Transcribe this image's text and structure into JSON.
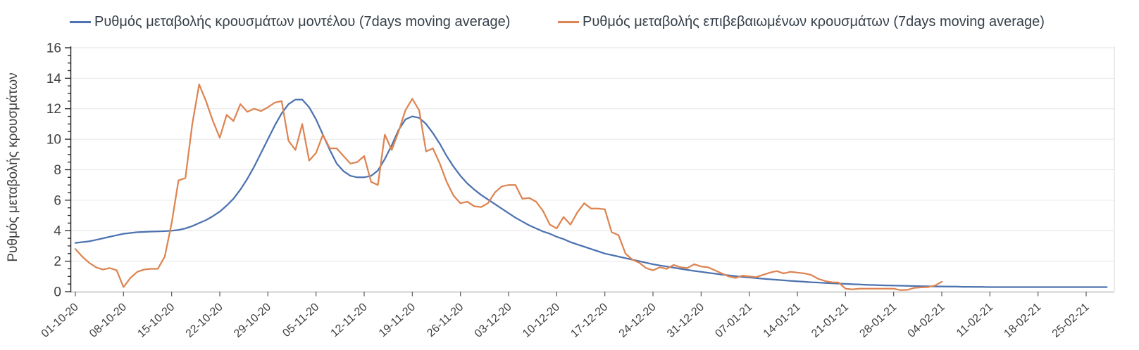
{
  "chart_data": {
    "type": "line",
    "title": "",
    "ylabel": "Ρυθμός μεταβολής κρουσμάτων",
    "xlabel": "",
    "ylim": [
      0,
      16
    ],
    "y_tick_step": 2,
    "y_minor_tick_step": 0.5,
    "grid": true,
    "legend_position": "top",
    "x_tick_interval_days": 7,
    "x_tick_labels": [
      "01-10-20",
      "08-10-20",
      "15-10-20",
      "22-10-20",
      "29-10-20",
      "05-11-20",
      "12-11-20",
      "19-11-20",
      "26-11-20",
      "03-12-20",
      "10-12-20",
      "17-12-20",
      "24-12-20",
      "31-12-20",
      "07-01-21",
      "14-01-21",
      "21-01-21",
      "28-01-21",
      "04-02-21",
      "11-02-21",
      "18-02-21",
      "25-02-21"
    ],
    "series": [
      {
        "name": "Ρυθμός μεταβολής κρουσμάτων μοντέλου (7days moving average)",
        "color": "#4C72B0",
        "start_day": 0,
        "values": [
          3.2,
          3.25,
          3.3,
          3.4,
          3.5,
          3.6,
          3.7,
          3.8,
          3.85,
          3.9,
          3.92,
          3.94,
          3.95,
          3.97,
          4.0,
          4.05,
          4.15,
          4.3,
          4.5,
          4.7,
          4.95,
          5.25,
          5.65,
          6.1,
          6.7,
          7.4,
          8.2,
          9.1,
          10.0,
          10.9,
          11.7,
          12.3,
          12.6,
          12.6,
          12.1,
          11.3,
          10.3,
          9.3,
          8.4,
          7.9,
          7.6,
          7.5,
          7.5,
          7.6,
          7.95,
          8.7,
          9.6,
          10.6,
          11.3,
          11.5,
          11.4,
          11.0,
          10.4,
          9.7,
          8.9,
          8.2,
          7.6,
          7.1,
          6.7,
          6.35,
          6.05,
          5.75,
          5.45,
          5.15,
          4.85,
          4.6,
          4.35,
          4.15,
          3.95,
          3.8,
          3.6,
          3.45,
          3.25,
          3.1,
          2.95,
          2.8,
          2.65,
          2.5,
          2.4,
          2.3,
          2.2,
          2.1,
          2.0,
          1.9,
          1.8,
          1.72,
          1.65,
          1.57,
          1.5,
          1.43,
          1.36,
          1.3,
          1.24,
          1.18,
          1.12,
          1.07,
          1.02,
          0.97,
          0.93,
          0.89,
          0.85,
          0.81,
          0.78,
          0.74,
          0.71,
          0.68,
          0.65,
          0.62,
          0.6,
          0.57,
          0.55,
          0.53,
          0.51,
          0.49,
          0.47,
          0.45,
          0.44,
          0.42,
          0.41,
          0.4,
          0.39,
          0.38,
          0.37,
          0.36,
          0.35,
          0.34,
          0.34,
          0.33,
          0.33,
          0.32,
          0.32,
          0.31,
          0.31,
          0.3,
          0.3,
          0.3,
          0.3,
          0.3,
          0.3,
          0.3,
          0.3,
          0.3,
          0.3,
          0.3,
          0.3,
          0.3,
          0.3,
          0.3,
          0.3,
          0.3,
          0.3
        ]
      },
      {
        "name": "Ρυθμός μεταβολής επιβεβαιωμένων κρουσμάτων (7days moving average)",
        "color": "#DD8452",
        "start_day": 0,
        "values": [
          2.8,
          2.3,
          1.9,
          1.6,
          1.45,
          1.55,
          1.4,
          0.3,
          0.9,
          1.3,
          1.45,
          1.5,
          1.5,
          2.3,
          4.5,
          7.3,
          7.45,
          11.0,
          13.6,
          12.5,
          11.2,
          10.1,
          11.6,
          11.2,
          12.3,
          11.8,
          12.0,
          11.85,
          12.1,
          12.4,
          12.5,
          9.9,
          9.3,
          11.0,
          8.6,
          9.1,
          10.3,
          9.4,
          9.4,
          8.9,
          8.4,
          8.5,
          8.9,
          7.2,
          7.0,
          10.3,
          9.3,
          10.5,
          11.9,
          12.65,
          11.9,
          9.2,
          9.4,
          8.4,
          7.2,
          6.3,
          5.8,
          5.9,
          5.6,
          5.55,
          5.8,
          6.5,
          6.9,
          7.0,
          7.0,
          6.1,
          6.15,
          5.9,
          5.3,
          4.4,
          4.15,
          4.9,
          4.4,
          5.2,
          5.8,
          5.45,
          5.45,
          5.4,
          3.9,
          3.7,
          2.5,
          2.1,
          1.9,
          1.55,
          1.4,
          1.6,
          1.5,
          1.75,
          1.6,
          1.55,
          1.8,
          1.65,
          1.6,
          1.4,
          1.2,
          1.0,
          0.9,
          1.05,
          1.0,
          0.95,
          1.1,
          1.25,
          1.35,
          1.2,
          1.3,
          1.25,
          1.2,
          1.1,
          0.85,
          0.7,
          0.62,
          0.6,
          0.2,
          0.15,
          0.2,
          0.2,
          0.2,
          0.2,
          0.2,
          0.2,
          0.1,
          0.12,
          0.25,
          0.28,
          0.3,
          0.4,
          0.65
        ]
      }
    ],
    "colors": {
      "grid": "#e6e6e6",
      "x_axis_line": "#bfbfbf",
      "right_border": "#d9d9d9",
      "y_axis_line": "#262626",
      "x_tick": "#595959",
      "tick_label": "#404040",
      "legend_text": "#36404a",
      "background": "#ffffff"
    }
  }
}
